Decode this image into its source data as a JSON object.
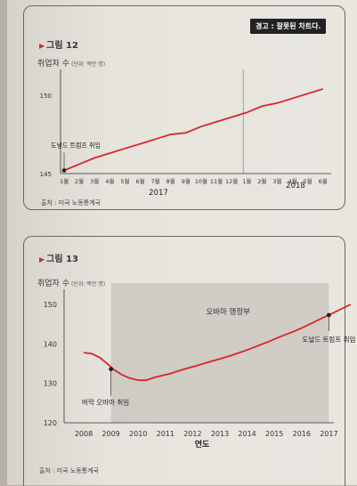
{
  "colors": {
    "line": "#d9262a",
    "shade": "#c9c5bf",
    "text": "#2b2b2b"
  },
  "figure12": {
    "tag": "그림 12",
    "ylabel": "취업자 수",
    "ylabel_unit": "(단위: 백만 명)",
    "warning": "경고 : 잘못된 차트다.",
    "annotation": "도널드 트럼프 취임",
    "source": "출처 : 미국 노동통계국",
    "chart_data": {
      "type": "line",
      "yticks": [
        "150",
        "145"
      ],
      "ylim": [
        145,
        151.5
      ],
      "xticks": [
        "1월",
        "2월",
        "3월",
        "4월",
        "5월",
        "6월",
        "7월",
        "8월",
        "9월",
        "10월",
        "11월",
        "12월",
        "1월",
        "2월",
        "3월",
        "4월",
        "5월",
        "6월"
      ],
      "year_labels": [
        "2017",
        "2018"
      ],
      "series": [
        {
          "values": [
            145.2,
            145.6,
            146.0,
            146.3,
            146.6,
            146.9,
            147.2,
            147.5,
            147.6,
            148.0,
            148.3,
            148.6,
            148.9,
            149.3,
            149.5,
            149.8,
            150.1,
            150.4
          ]
        }
      ],
      "marker_index": 0
    }
  },
  "figure13": {
    "tag": "그림 13",
    "ylabel": "취업자 수",
    "ylabel_unit": "(단위: 백만 명)",
    "shade_label": "오바마 행정부",
    "annotation_start": "버락 오바마 취임",
    "annotation_end": "도널드 트럼프 취임",
    "xlabel": "연도",
    "source": "출처 : 미국 노동통계국",
    "chart_data": {
      "type": "line",
      "yticks": [
        "150",
        "140",
        "130",
        "120"
      ],
      "ylim": [
        120,
        155
      ],
      "xticks": [
        "2008",
        "2009",
        "2010",
        "2011",
        "2012",
        "2013",
        "2014",
        "2015",
        "2016",
        "2017"
      ],
      "series": [
        {
          "x": [
            2008.0,
            2008.3,
            2008.6,
            2008.9,
            2009.1,
            2009.4,
            2009.7,
            2010.0,
            2010.3,
            2010.6,
            2010.9,
            2011.2,
            2011.5,
            2011.8,
            2012.1,
            2012.4,
            2012.7,
            2013.0,
            2013.3,
            2013.6,
            2013.9,
            2014.2,
            2014.5,
            2014.8,
            2015.1,
            2015.4,
            2015.7,
            2016.0,
            2016.3,
            2016.6,
            2016.9,
            2017.2,
            2017.5,
            2017.8
          ],
          "values": [
            137.8,
            137.5,
            136.5,
            134.8,
            133.5,
            132.2,
            131.3,
            130.8,
            130.8,
            131.5,
            132.0,
            132.5,
            133.2,
            133.8,
            134.4,
            135.0,
            135.6,
            136.2,
            136.8,
            137.5,
            138.2,
            139.0,
            139.8,
            140.6,
            141.5,
            142.3,
            143.1,
            144.0,
            145.0,
            146.0,
            147.0,
            148.0,
            149.0,
            150.0
          ]
        }
      ],
      "start_marker": [
        2009.0,
        133.6
      ],
      "end_marker": [
        2017.0,
        147.3
      ]
    }
  }
}
